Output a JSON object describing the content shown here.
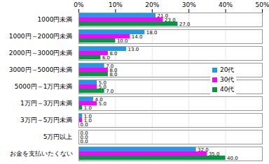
{
  "chart_data": {
    "type": "bar",
    "orientation": "horizontal",
    "categories": [
      "1000円未満",
      "1000円～2000円未満",
      "2000円～3000円未満",
      "3000円～5000円未満",
      "5000円～1万円未満",
      "1万円～3万円未満",
      "3万円～5万円未満",
      "5万円以上",
      "お金を支払いたくない"
    ],
    "series": [
      {
        "name": "20代",
        "color": "#1e9be6",
        "values": [
          21,
          18,
          13,
          7,
          5,
          4,
          1,
          0,
          32
        ],
        "value_labels": [
          "21.0",
          "18.0",
          "13.0",
          "7.0",
          "5.0",
          "4.0",
          "1.0",
          "0.0",
          "32.0"
        ]
      },
      {
        "name": "30代",
        "color": "#ff00ff",
        "values": [
          23,
          14,
          8,
          8,
          5,
          5,
          1,
          0,
          35
        ],
        "value_labels": [
          "23.0",
          "14.0",
          "8.0",
          "8.0",
          "5.0",
          "5.0",
          "1.0",
          "0.0",
          "35.0"
        ]
      },
      {
        "name": "40代",
        "color": "#009a3e",
        "values": [
          27,
          10,
          6,
          8,
          7,
          1,
          0,
          0,
          40
        ],
        "value_labels": [
          "27.0",
          "10.0",
          "6.0",
          "8.0",
          "7.0",
          "1.0",
          "0.0",
          "0.0",
          "40.0"
        ]
      }
    ],
    "xlim": [
      0,
      50
    ],
    "xticks": [
      {
        "value": 0,
        "label": "0%"
      },
      {
        "value": 10,
        "label": "10%"
      },
      {
        "value": 20,
        "label": "20%"
      },
      {
        "value": 30,
        "label": "30%"
      },
      {
        "value": 40,
        "label": "40%"
      },
      {
        "value": 50,
        "label": "50%"
      }
    ],
    "grid": true,
    "data_labels": true,
    "legend": "right"
  }
}
